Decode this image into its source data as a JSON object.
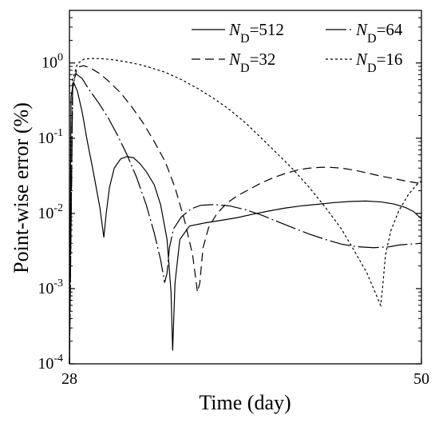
{
  "chart_data": {
    "type": "line",
    "xlabel": "Time (day)",
    "ylabel": "Point-wise error (%)",
    "xlim": [
      28,
      50
    ],
    "ylim": [
      0.0001,
      5
    ],
    "yscale": "log",
    "xticks": [
      {
        "value": 28,
        "label": "28"
      },
      {
        "value": 50,
        "label": "50"
      }
    ],
    "yticks": [
      {
        "value": 0.0001,
        "base": "10",
        "exp": "-4"
      },
      {
        "value": 0.001,
        "base": "10",
        "exp": "-3"
      },
      {
        "value": 0.01,
        "base": "10",
        "exp": "-2"
      },
      {
        "value": 0.1,
        "base": "10",
        "exp": "-1"
      },
      {
        "value": 1,
        "base": "10",
        "exp": "0"
      }
    ],
    "grid": false,
    "legend_position": "top-right",
    "series": [
      {
        "name": "N_D=512",
        "legend": {
          "symbol": "N",
          "sub": "D",
          "suffix": "=512"
        },
        "dash": "solid",
        "color": "#000000",
        "x": [
          28.0,
          28.1,
          28.25,
          28.5,
          28.8,
          29.1,
          29.5,
          29.9,
          30.15,
          30.3,
          30.5,
          30.8,
          31.2,
          31.6,
          32.0,
          32.4,
          32.8,
          33.3,
          33.7,
          34.1,
          34.35,
          34.45,
          34.6,
          34.9,
          35.5,
          36.5,
          37.5,
          38.5,
          39.5,
          40.5,
          41.5,
          42.5,
          43.5,
          44.5,
          45.5,
          46.5,
          47.5,
          48.3,
          49.0,
          49.5,
          50.0
        ],
        "y": [
          0.0001,
          0.35,
          0.56,
          0.42,
          0.22,
          0.095,
          0.035,
          0.012,
          0.0048,
          0.01,
          0.022,
          0.04,
          0.053,
          0.057,
          0.055,
          0.046,
          0.036,
          0.024,
          0.013,
          0.0045,
          0.0009,
          0.00015,
          0.0012,
          0.0045,
          0.0068,
          0.0075,
          0.0081,
          0.0088,
          0.0098,
          0.0108,
          0.0118,
          0.0126,
          0.0132,
          0.0139,
          0.0144,
          0.0146,
          0.0142,
          0.0133,
          0.012,
          0.0106,
          0.0085
        ]
      },
      {
        "name": "N_D=64",
        "legend": {
          "symbol": "N",
          "sub": "D",
          "suffix": "=64"
        },
        "dash": "longdash",
        "color": "#000000",
        "x": [
          28.0,
          28.2,
          28.4,
          28.8,
          29.2,
          29.8,
          30.4,
          31.0,
          31.6,
          32.2,
          32.8,
          33.3,
          33.7,
          33.95,
          34.1,
          34.25,
          34.5,
          35.0,
          35.6,
          36.2,
          37.0,
          38.0,
          39.0,
          40.0,
          41.0,
          42.0,
          43.0,
          44.0,
          45.0,
          46.0,
          47.0,
          48.0,
          48.6,
          49.2,
          50.0
        ],
        "y": [
          0.0001,
          0.45,
          0.72,
          0.62,
          0.45,
          0.3,
          0.19,
          0.11,
          0.06,
          0.03,
          0.013,
          0.0055,
          0.0024,
          0.0012,
          0.0016,
          0.0035,
          0.0062,
          0.009,
          0.0115,
          0.0128,
          0.0131,
          0.0126,
          0.0112,
          0.0095,
          0.0078,
          0.0064,
          0.0053,
          0.0045,
          0.0039,
          0.0036,
          0.0035,
          0.0036,
          0.0038,
          0.0039,
          0.004
        ]
      },
      {
        "name": "N_D=32",
        "legend": {
          "symbol": "N",
          "sub": "D",
          "suffix": "=32"
        },
        "dash": "dash",
        "color": "#000000",
        "x": [
          28.0,
          28.2,
          28.5,
          28.9,
          29.3,
          29.9,
          30.5,
          31.2,
          31.9,
          32.6,
          33.3,
          34.0,
          34.6,
          35.2,
          35.7,
          36.0,
          36.15,
          36.35,
          36.7,
          37.2,
          37.8,
          38.5,
          39.3,
          40.0,
          40.8,
          41.6,
          42.3,
          43.0,
          43.7,
          44.3,
          45.0,
          45.8,
          46.6,
          47.4,
          48.3,
          49.0,
          50.0
        ],
        "y": [
          0.0001,
          0.5,
          0.88,
          0.92,
          0.86,
          0.72,
          0.56,
          0.4,
          0.26,
          0.16,
          0.09,
          0.048,
          0.022,
          0.008,
          0.0028,
          0.0009,
          0.0012,
          0.0035,
          0.0065,
          0.0098,
          0.0135,
          0.0172,
          0.0212,
          0.0255,
          0.0302,
          0.0345,
          0.038,
          0.04,
          0.041,
          0.0409,
          0.04,
          0.0376,
          0.0345,
          0.0315,
          0.029,
          0.027,
          0.0248
        ]
      },
      {
        "name": "N_D=16",
        "legend": {
          "symbol": "N",
          "sub": "D",
          "suffix": "=16"
        },
        "dash": "dot",
        "color": "#000000",
        "x": [
          28.0,
          28.2,
          28.5,
          28.9,
          29.4,
          30.0,
          30.8,
          31.6,
          32.4,
          33.2,
          34.0,
          35.0,
          36.0,
          37.0,
          38.0,
          39.0,
          40.0,
          41.0,
          42.0,
          43.0,
          44.0,
          45.0,
          45.8,
          46.6,
          47.1,
          47.45,
          47.6,
          47.75,
          48.1,
          48.6,
          49.2,
          49.7,
          50.0
        ],
        "y": [
          0.0001,
          0.6,
          0.98,
          1.12,
          1.15,
          1.14,
          1.1,
          1.03,
          0.95,
          0.85,
          0.75,
          0.6,
          0.46,
          0.34,
          0.24,
          0.16,
          0.1,
          0.062,
          0.038,
          0.022,
          0.012,
          0.0062,
          0.0032,
          0.0016,
          0.0009,
          0.0006,
          0.0012,
          0.0028,
          0.006,
          0.011,
          0.018,
          0.024,
          0.027
        ]
      }
    ]
  }
}
